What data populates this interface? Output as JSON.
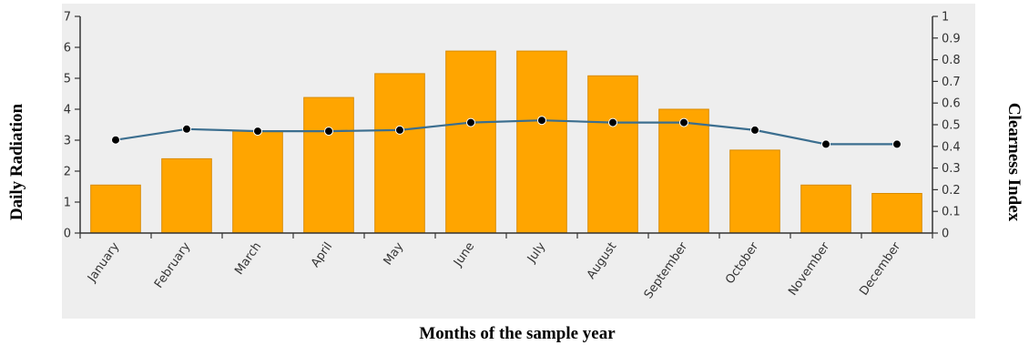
{
  "chart_data": {
    "type": "bar",
    "xlabel": "Months of the sample year",
    "ylabel": "Daily Radiation",
    "y2label": "Clearness Index",
    "categories": [
      "January",
      "February",
      "March",
      "April",
      "May",
      "June",
      "July",
      "August",
      "September",
      "October",
      "November",
      "December"
    ],
    "ylim": [
      0,
      7
    ],
    "y2lim": [
      0,
      1
    ],
    "yticks": [
      "0",
      "1",
      "2",
      "3",
      "4",
      "5",
      "6",
      "7"
    ],
    "y2ticks": [
      "0",
      "0.1",
      "0.2",
      "0.3",
      "0.4",
      "0.5",
      "0.6",
      "0.7",
      "0.8",
      "0.9",
      "1"
    ],
    "series": [
      {
        "type": "bar",
        "axis": "left",
        "values": [
          1.55,
          2.4,
          3.3,
          4.38,
          5.15,
          5.88,
          5.88,
          5.08,
          4.0,
          2.68,
          1.55,
          1.28
        ]
      },
      {
        "type": "line",
        "axis": "right",
        "values": [
          0.43,
          0.48,
          0.47,
          0.47,
          0.475,
          0.51,
          0.52,
          0.51,
          0.51,
          0.475,
          0.41,
          0.41
        ]
      }
    ],
    "colors": {
      "bar_fill": "#ffa500",
      "bar_stroke": "#d98b00",
      "line": "#3b6e8f",
      "marker": "#000000",
      "plot_background": "#eeeeee",
      "axis": "#333333"
    },
    "grid": false,
    "legend": "none"
  }
}
